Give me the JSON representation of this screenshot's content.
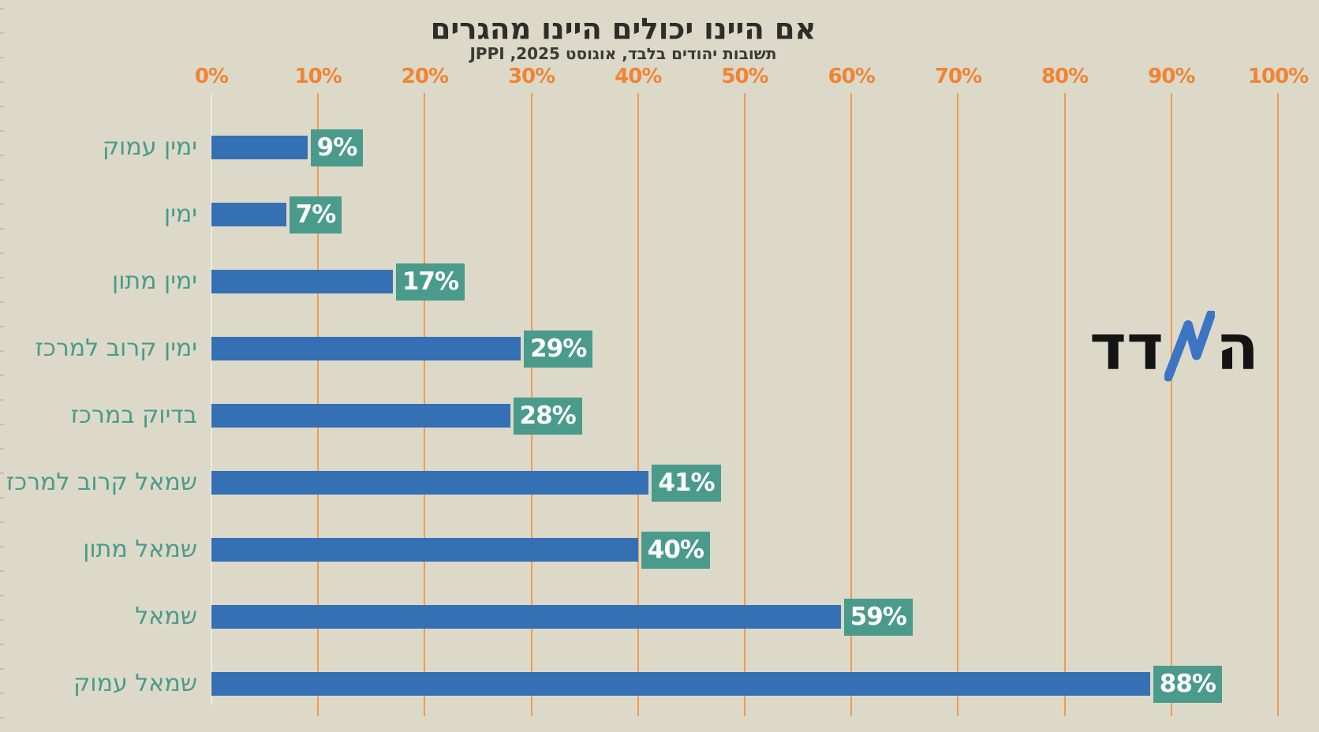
{
  "title": "אם היינו יכולים היינו מהגרים",
  "subtitle": "תשובות יהודים בלבד, אוגוסט 2025, JPPI",
  "logo": {
    "name": "hamadad",
    "text_right": "ה",
    "text_left": "דד",
    "icon": "trend-zigzag-icon"
  },
  "x_axis": {
    "tick_labels": [
      "0%",
      "10%",
      "20%",
      "30%",
      "40%",
      "50%",
      "60%",
      "70%",
      "80%",
      "90%",
      "100%"
    ]
  },
  "chart_data": {
    "type": "bar",
    "orientation": "horizontal",
    "title": "אם היינו יכולים היינו מהגרים",
    "subtitle": "תשובות יהודים בלבד, אוגוסט 2025, JPPI",
    "categories": [
      "ימין עמוק",
      "ימין",
      "ימין מתון",
      "ימין קרוב למרכז",
      "בדיוק במרכז",
      "שמאל קרוב למרכז",
      "שמאל מתון",
      "שמאל",
      "שמאל עמוק"
    ],
    "values": [
      9,
      7,
      17,
      29,
      28,
      41,
      40,
      59,
      88
    ],
    "value_labels": [
      "9%",
      "7%",
      "17%",
      "29%",
      "28%",
      "41%",
      "40%",
      "59%",
      "88%"
    ],
    "xlim": [
      0,
      100
    ],
    "x_tick_step_percent": 10,
    "grid": "vertical",
    "legend": "none",
    "value_label_style": "teal-badge-at-bar-end",
    "category_label_side": "left"
  },
  "colors": {
    "background": "#dcd9c9",
    "bar": "#3570b4",
    "value_badge": "#4a9b8b",
    "category_label": "#4a9b8b",
    "axis_label": "#f08433",
    "gridline": "#f09c50",
    "zero_line": "#ecebe0",
    "title": "#2e2d2a",
    "subtitle": "#3b3a36",
    "logo_text": "#141414",
    "logo_accent": "#3d74c4"
  }
}
